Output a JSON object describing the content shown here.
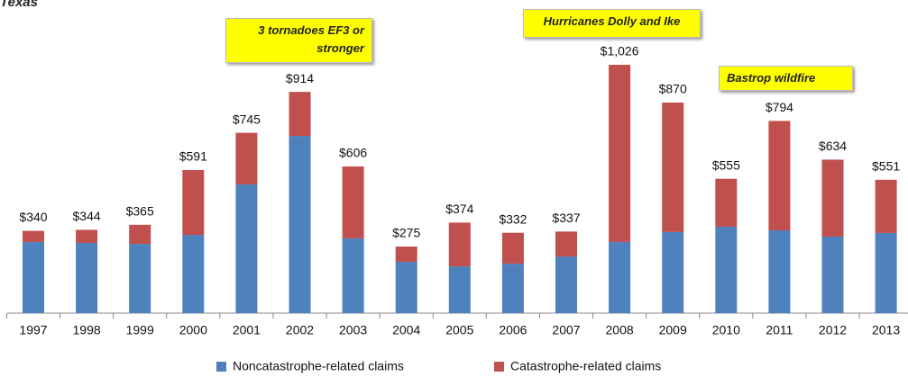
{
  "chart_data": {
    "type": "stacked-bar",
    "title": "Texas",
    "categories": [
      "1997",
      "1998",
      "1999",
      "2000",
      "2001",
      "2002",
      "2003",
      "2004",
      "2005",
      "2006",
      "2007",
      "2008",
      "2009",
      "2010",
      "2011",
      "2012",
      "2013"
    ],
    "series": [
      {
        "name": "Noncatastrophe-related claims",
        "color": "#4f81bd",
        "values": [
          294,
          290,
          286,
          323,
          532,
          732,
          309,
          212,
          193,
          204,
          234,
          294,
          335,
          357,
          342,
          316,
          331
        ]
      },
      {
        "name": "Catastrophe-related claims",
        "color": "#c0504d",
        "values": [
          46,
          54,
          79,
          268,
          213,
          182,
          297,
          63,
          181,
          128,
          103,
          732,
          535,
          198,
          452,
          318,
          220
        ]
      }
    ],
    "totals": {
      "values": [
        340,
        344,
        365,
        591,
        745,
        914,
        606,
        275,
        374,
        332,
        337,
        1026,
        870,
        555,
        794,
        634,
        551
      ],
      "value_labels": [
        "$340",
        "$344",
        "$365",
        "$591",
        "$745",
        "$914",
        "$606",
        "$275",
        "$374",
        "$332",
        "$337",
        "$1,026",
        "$870",
        "$555",
        "$794",
        "$634",
        "$551"
      ]
    },
    "annotations": [
      "3 tornadoes EF3 or stronger",
      "Hurricanes Dolly and Ike",
      "Bastrop wildfire"
    ]
  }
}
